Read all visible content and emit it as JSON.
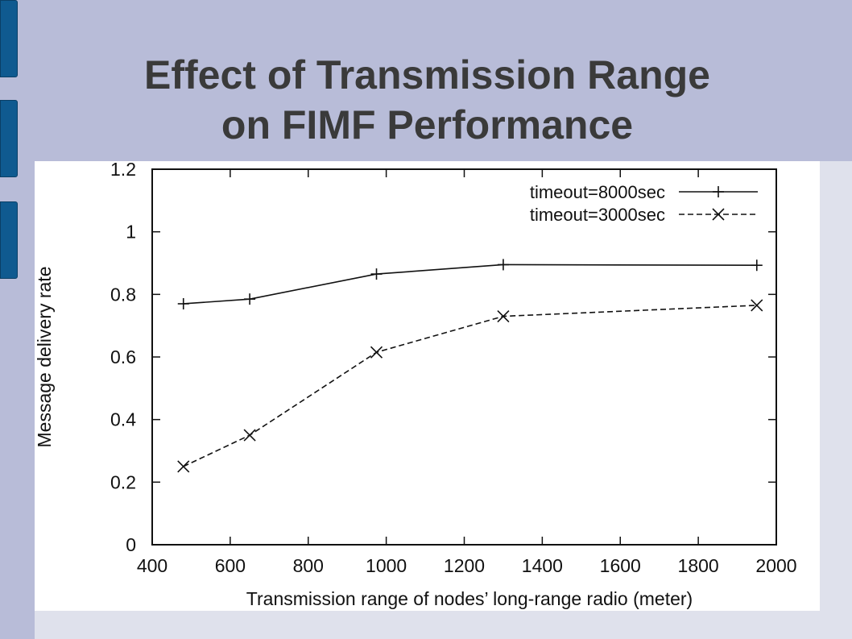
{
  "slide": {
    "title_line1": "Effect of Transmission Range",
    "title_line2": "on FIMF Performance"
  },
  "colors": {
    "background": "#b8bcd8",
    "tab": "#0f5a90",
    "title": "#3a3a3a"
  },
  "chart_data": {
    "type": "line",
    "title": "",
    "xlabel": "Transmission range of nodes’ long-range radio (meter)",
    "ylabel": "Message delivery rate",
    "xlim": [
      400,
      2000
    ],
    "ylim": [
      0,
      1.2
    ],
    "x_ticks": [
      "400",
      "600",
      "800",
      "1000",
      "1200",
      "1400",
      "1600",
      "1800",
      "2000"
    ],
    "y_ticks": [
      "0",
      "0.2",
      "0.4",
      "0.6",
      "0.8",
      "1",
      "1.2"
    ],
    "x": [
      480,
      650,
      975,
      1300,
      1950
    ],
    "series": [
      {
        "name": "timeout=8000sec",
        "values": [
          0.77,
          0.785,
          0.865,
          0.895,
          0.893
        ],
        "marker": "plus",
        "dash": "solid"
      },
      {
        "name": "timeout=3000sec",
        "values": [
          0.25,
          0.35,
          0.615,
          0.73,
          0.765
        ],
        "marker": "x",
        "dash": "dashed"
      }
    ],
    "grid": false,
    "legend_position": "top-right"
  }
}
